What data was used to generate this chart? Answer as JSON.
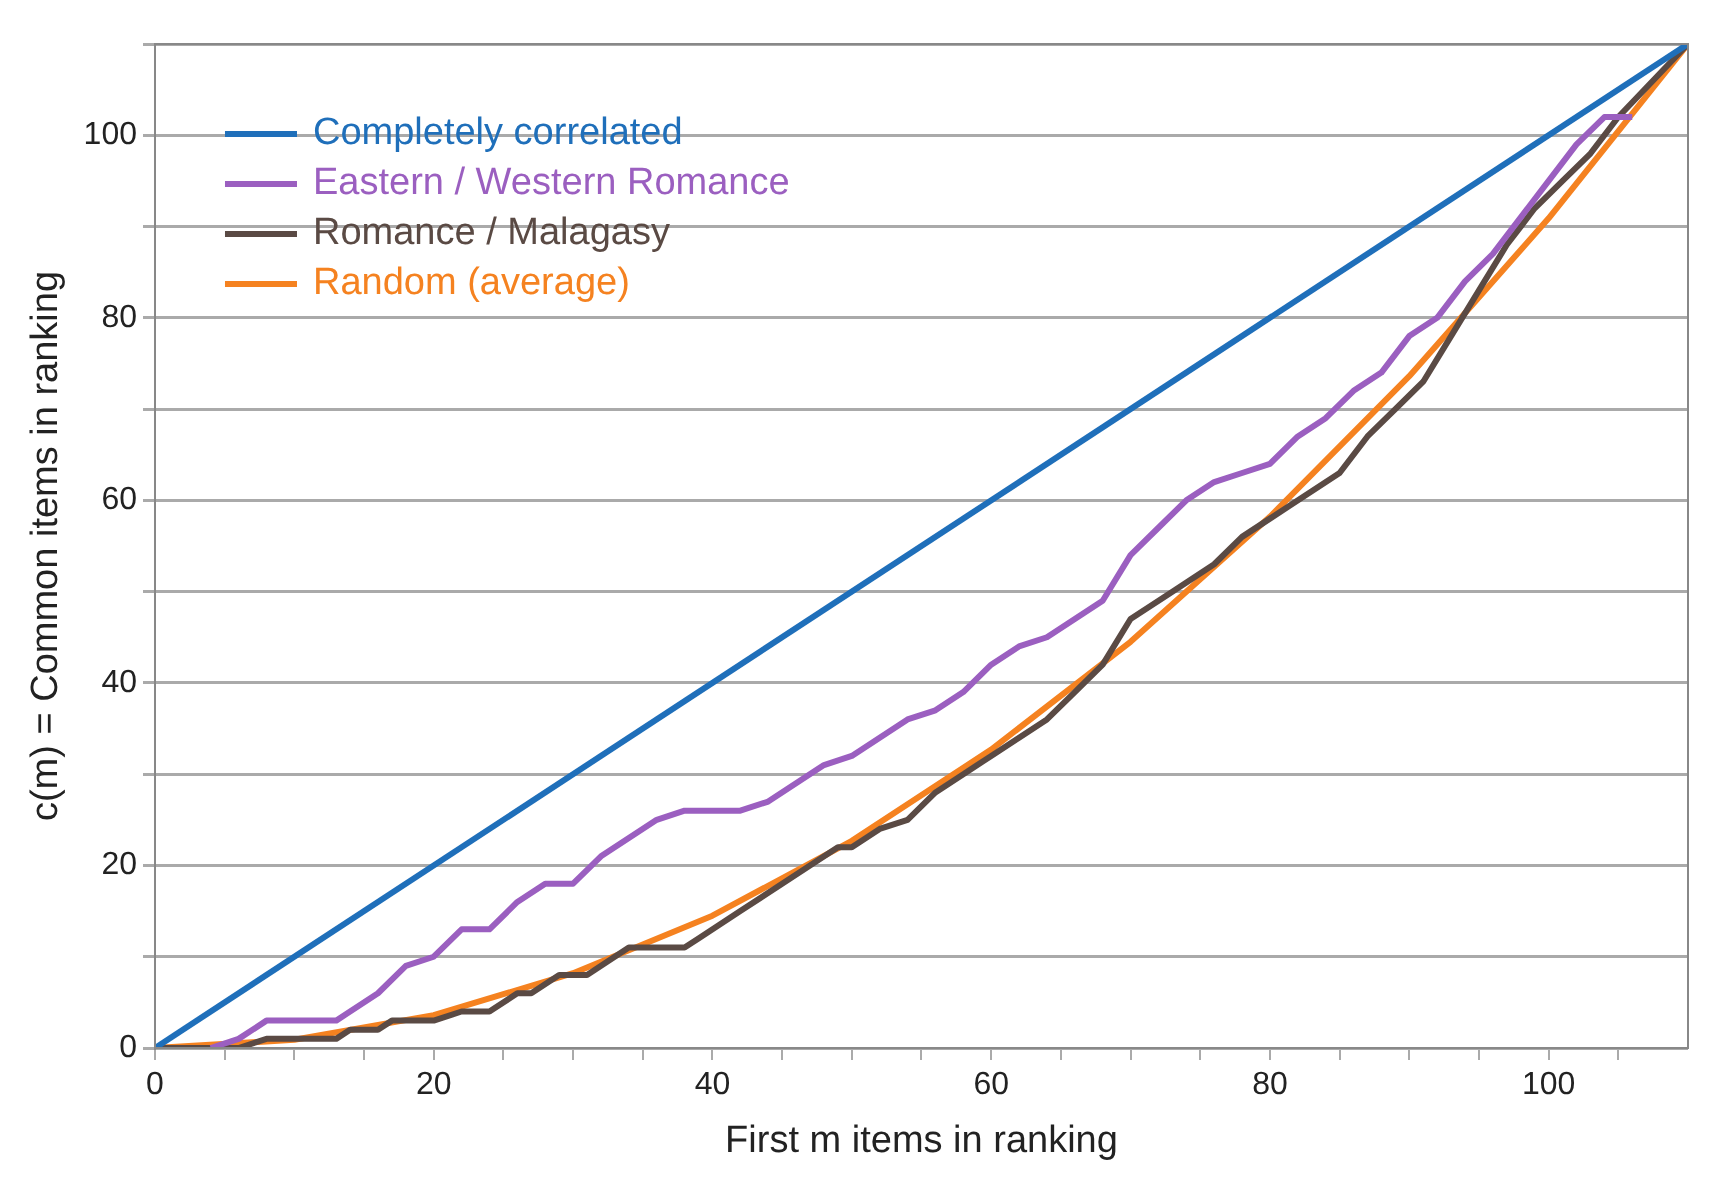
{
  "chart_data": {
    "type": "line",
    "xlabel": "First m items in ranking",
    "ylabel": "c(m) = Common items in ranking",
    "xlim": [
      0,
      110
    ],
    "ylim": [
      0,
      110
    ],
    "xticks": [
      0,
      {
        "value": 5,
        "label": null
      },
      {
        "value": 10,
        "label": null
      },
      {
        "value": 15,
        "label": null
      },
      20,
      {
        "value": 25,
        "label": null
      },
      {
        "value": 30,
        "label": null
      },
      {
        "value": 35,
        "label": null
      },
      40,
      {
        "value": 45,
        "label": null
      },
      {
        "value": 50,
        "label": null
      },
      {
        "value": 55,
        "label": null
      },
      60,
      {
        "value": 65,
        "label": null
      },
      {
        "value": 70,
        "label": null
      },
      {
        "value": 75,
        "label": null
      },
      80,
      {
        "value": 85,
        "label": null
      },
      {
        "value": 90,
        "label": null
      },
      {
        "value": 95,
        "label": null
      },
      100,
      {
        "value": 105,
        "label": null
      }
    ],
    "yticks": [
      0,
      {
        "value": 10,
        "label": null
      },
      20,
      {
        "value": 30,
        "label": null
      },
      40,
      {
        "value": 50,
        "label": null
      },
      60,
      {
        "value": 70,
        "label": null
      },
      80,
      {
        "value": 90,
        "label": null
      },
      100,
      {
        "value": 110,
        "label": null
      }
    ],
    "grid": "y",
    "legend": "top left",
    "marker": "none",
    "line_style": "solid",
    "series": [
      {
        "name": "Completely correlated",
        "color": "#1f6fba",
        "x": [
          0,
          110
        ],
        "values": [
          0,
          110
        ]
      },
      {
        "name": "Eastern / Western Romance",
        "color": "#9b5fc0",
        "x": [
          4,
          6,
          8,
          13,
          16,
          18,
          20,
          22,
          24,
          26,
          28,
          30,
          32,
          34,
          36,
          38,
          42,
          44,
          46,
          48,
          50,
          52,
          54,
          56,
          58,
          60,
          62,
          64,
          66,
          68,
          70,
          72,
          74,
          76,
          78,
          80,
          82,
          84,
          86,
          88,
          90,
          92,
          94,
          96,
          98,
          100,
          102,
          104,
          106
        ],
        "values": [
          0,
          1,
          3,
          3,
          6,
          9,
          10,
          13,
          13,
          16,
          18,
          18,
          21,
          23,
          25,
          26,
          26,
          27,
          29,
          31,
          32,
          34,
          36,
          37,
          39,
          42,
          44,
          45,
          47,
          49,
          54,
          57,
          60,
          62,
          63,
          64,
          67,
          69,
          72,
          74,
          78,
          80,
          84,
          87,
          91,
          95,
          99,
          102,
          102
        ]
      },
      {
        "name": "Romance / Malagasy",
        "color": "#5a4a44",
        "x": [
          0,
          6,
          8,
          13,
          14,
          16,
          17,
          20,
          22,
          24,
          26,
          27,
          29,
          31,
          34,
          38,
          39,
          42,
          45,
          47,
          49,
          50,
          52,
          54,
          56,
          58,
          60,
          62,
          64,
          66,
          68,
          70,
          73,
          76,
          78,
          80,
          83,
          85,
          87,
          89,
          91,
          93,
          95,
          97,
          99,
          101,
          103,
          105,
          110
        ],
        "values": [
          0,
          0,
          1,
          1,
          2,
          2,
          3,
          3,
          4,
          4,
          6,
          6,
          8,
          8,
          11,
          11,
          12,
          15,
          18,
          20,
          22,
          22,
          24,
          25,
          28,
          30,
          32,
          34,
          36,
          39,
          42,
          47,
          50,
          53,
          56,
          58,
          61,
          63,
          67,
          70,
          73,
          78,
          83,
          88,
          92,
          95,
          98,
          102,
          110
        ]
      },
      {
        "name": "Random (average)",
        "color": "#f58220",
        "x": [
          0,
          10,
          20,
          30,
          40,
          50,
          60,
          70,
          80,
          90,
          100,
          110
        ],
        "values": [
          0,
          0.9,
          3.6,
          8.2,
          14.5,
          22.7,
          32.7,
          44.5,
          58.2,
          73.6,
          90.9,
          110
        ]
      }
    ]
  }
}
